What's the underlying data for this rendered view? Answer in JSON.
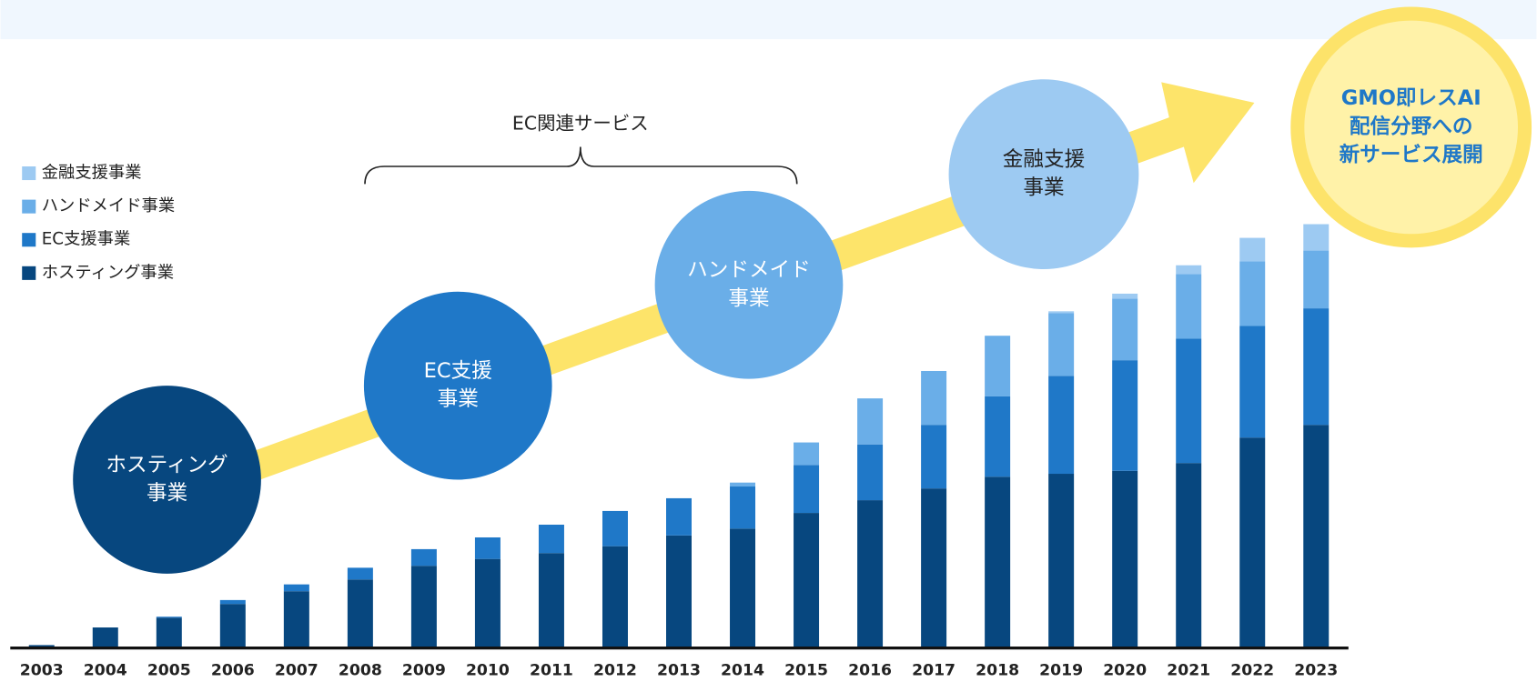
{
  "chart_data": {
    "type": "stacked_bar",
    "categories": [
      "2003",
      "2004",
      "2005",
      "2006",
      "2007",
      "2008",
      "2009",
      "2010",
      "2011",
      "2012",
      "2013",
      "2014",
      "2015",
      "2016",
      "2017",
      "2018",
      "2019",
      "2020",
      "2021",
      "2022",
      "2023"
    ],
    "series": [
      {
        "name": "ホスティング事業",
        "color": "#07477f",
        "values": [
          3,
          21,
          31,
          45,
          58,
          70,
          84,
          91,
          97,
          104,
          115,
          122,
          138,
          151,
          163,
          175,
          178,
          181,
          189,
          215,
          228
        ]
      },
      {
        "name": "EC支援事業",
        "color": "#1f78c8",
        "values": [
          0,
          0,
          1,
          4,
          7,
          12,
          17,
          22,
          29,
          36,
          38,
          43,
          49,
          57,
          65,
          82,
          100,
          113,
          127,
          114,
          119
        ]
      },
      {
        "name": "ハンドメイド事業",
        "color": "#6aaee8",
        "values": [
          0,
          0,
          0,
          0,
          0,
          0,
          0,
          0,
          0,
          0,
          0,
          4,
          23,
          47,
          55,
          62,
          64,
          63,
          66,
          66,
          59
        ]
      },
      {
        "name": "金融支援事業",
        "color": "#9dcaf2",
        "values": [
          0,
          0,
          0,
          0,
          0,
          0,
          0,
          0,
          0,
          0,
          0,
          0,
          0,
          0,
          0,
          0,
          2,
          5,
          9,
          24,
          27
        ]
      }
    ],
    "ylim": [
      0,
      450
    ],
    "bracket_label": "EC関連サービス",
    "bubbles": [
      {
        "lines": [
          "ホスティング",
          "事業"
        ]
      },
      {
        "lines": [
          "EC支援",
          "事業"
        ]
      },
      {
        "lines": [
          "ハンドメイド",
          "事業"
        ]
      },
      {
        "lines": [
          "金融支援",
          "事業"
        ]
      },
      {
        "lines": [
          "GMO即レスAI",
          "配信分野への",
          "新サービス展開"
        ]
      }
    ]
  }
}
